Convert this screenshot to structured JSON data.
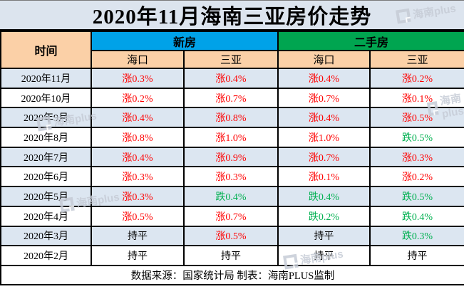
{
  "chart_data": {
    "type": "table",
    "title": "2020年11月海南三亚房价走势",
    "time_header": "时间",
    "groups": [
      {
        "label": "新房",
        "color": "#00a2e8"
      },
      {
        "label": "二手房",
        "color": "#00a550"
      }
    ],
    "sub_headers": [
      "海口",
      "三亚",
      "海口",
      "三亚"
    ],
    "columns": [
      "时间",
      "新房-海口",
      "新房-三亚",
      "二手房-海口",
      "二手房-三亚"
    ],
    "rows": [
      {
        "month": "2020年11月",
        "values": [
          {
            "text": "涨0.3%",
            "trend": "up"
          },
          {
            "text": "涨0.4%",
            "trend": "up"
          },
          {
            "text": "涨0.4%",
            "trend": "up"
          },
          {
            "text": "涨0.2%",
            "trend": "up"
          }
        ]
      },
      {
        "month": "2020年10月",
        "values": [
          {
            "text": "涨0.2%",
            "trend": "up"
          },
          {
            "text": "涨0.7%",
            "trend": "up"
          },
          {
            "text": "涨0.7%",
            "trend": "up"
          },
          {
            "text": "涨0.1%",
            "trend": "up"
          }
        ]
      },
      {
        "month": "2020年9月",
        "values": [
          {
            "text": "涨0.4%",
            "trend": "up"
          },
          {
            "text": "涨0.8%",
            "trend": "up"
          },
          {
            "text": "涨0.4%",
            "trend": "up"
          },
          {
            "text": "涨0.5%",
            "trend": "up"
          }
        ]
      },
      {
        "month": "2020年8月",
        "values": [
          {
            "text": "涨0.8%",
            "trend": "up"
          },
          {
            "text": "涨1.0%",
            "trend": "up"
          },
          {
            "text": "涨1.0%",
            "trend": "up"
          },
          {
            "text": "跌0.5%",
            "trend": "down"
          }
        ]
      },
      {
        "month": "2020年7月",
        "values": [
          {
            "text": "涨0.4%",
            "trend": "up"
          },
          {
            "text": "涨0.9%",
            "trend": "up"
          },
          {
            "text": "涨0.7%",
            "trend": "up"
          },
          {
            "text": "涨0.3%",
            "trend": "up"
          }
        ]
      },
      {
        "month": "2020年6月",
        "values": [
          {
            "text": "涨0.3%",
            "trend": "up"
          },
          {
            "text": "涨0.3%",
            "trend": "up"
          },
          {
            "text": "涨0.1%",
            "trend": "up"
          },
          {
            "text": "涨0.2%",
            "trend": "up"
          }
        ]
      },
      {
        "month": "2020年5月",
        "values": [
          {
            "text": "涨0.3%",
            "trend": "up"
          },
          {
            "text": "跌0.4%",
            "trend": "down"
          },
          {
            "text": "跌0.4%",
            "trend": "down"
          },
          {
            "text": "跌0.5%",
            "trend": "down"
          }
        ]
      },
      {
        "month": "2020年4月",
        "values": [
          {
            "text": "涨0.5%",
            "trend": "up"
          },
          {
            "text": "涨0.7%",
            "trend": "up"
          },
          {
            "text": "跌0.2%",
            "trend": "down"
          },
          {
            "text": "跌0.4%",
            "trend": "down"
          }
        ]
      },
      {
        "month": "2020年3月",
        "values": [
          {
            "text": "持平",
            "trend": "flat"
          },
          {
            "text": "涨0.5%",
            "trend": "up"
          },
          {
            "text": "持平",
            "trend": "flat"
          },
          {
            "text": "跌0.3%",
            "trend": "down"
          }
        ]
      },
      {
        "month": "2020年2月",
        "values": [
          {
            "text": "持平",
            "trend": "flat"
          },
          {
            "text": "持平",
            "trend": "flat"
          },
          {
            "text": "持平",
            "trend": "flat"
          },
          {
            "text": "持平",
            "trend": "flat"
          }
        ]
      }
    ]
  },
  "footer": {
    "text": "数据来源：国家统计局  制表：海南PLUS监制"
  },
  "watermark": {
    "text": "海南plus"
  },
  "colors": {
    "up_text": "#ff0000",
    "down_text": "#00b050",
    "flat_text": "#000000",
    "new_header_bg": "#00a2e8",
    "secondhand_header_bg": "#00a550",
    "peach_header_bg": "#fbd0a7",
    "title_bg": "#dce4ee",
    "row_alt_bg": "#dce6f1"
  }
}
